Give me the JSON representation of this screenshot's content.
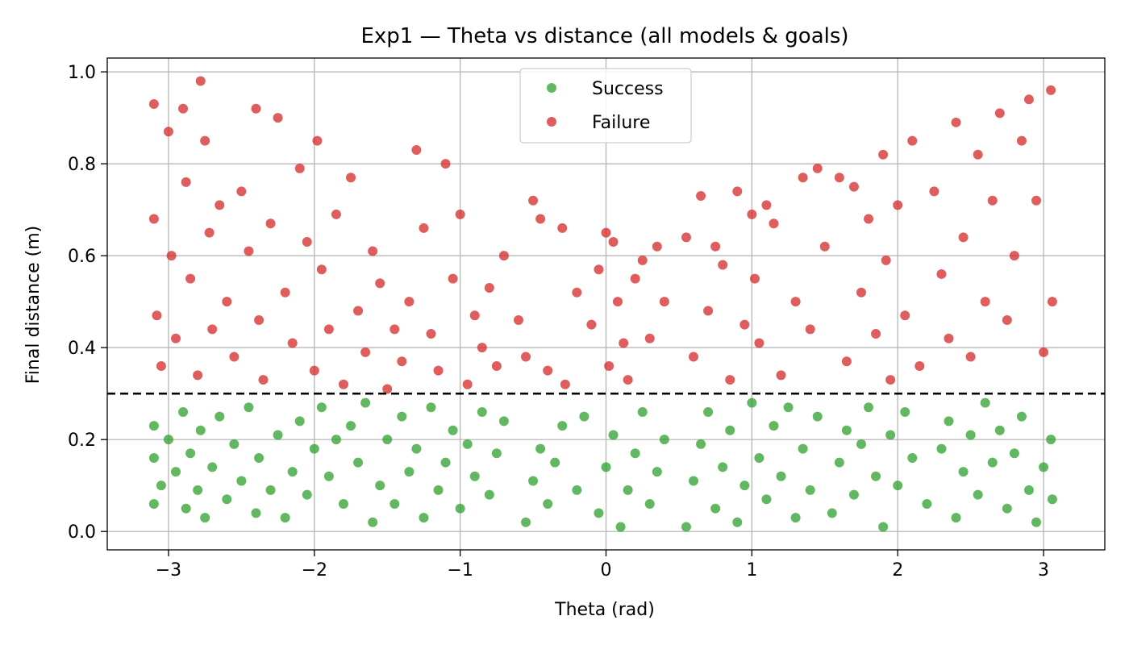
{
  "chart_data": {
    "type": "scatter",
    "title": "Exp1 — Theta vs distance (all models & goals)",
    "xlabel": "Theta (rad)",
    "ylabel": "Final distance (m)",
    "xlim": [
      -3.42,
      3.42
    ],
    "ylim": [
      -0.04,
      1.03
    ],
    "xticks": [
      -3,
      -2,
      -1,
      0,
      1,
      2,
      3
    ],
    "xtick_labels": [
      "−3",
      "−2",
      "−1",
      "0",
      "1",
      "2",
      "3"
    ],
    "yticks": [
      0.0,
      0.2,
      0.4,
      0.6,
      0.8,
      1.0
    ],
    "ytick_labels": [
      "0.0",
      "0.2",
      "0.4",
      "0.6",
      "0.8",
      "1.0"
    ],
    "grid": true,
    "legend_position": "upper-center",
    "threshold": {
      "y": 0.3,
      "style": "dashed",
      "color": "#000000"
    },
    "series": [
      {
        "name": "Success",
        "color": "#2ca02c",
        "points": [
          [
            -3.1,
            0.06
          ],
          [
            -3.1,
            0.16
          ],
          [
            -3.1,
            0.23
          ],
          [
            -3.05,
            0.1
          ],
          [
            -3.0,
            0.2
          ],
          [
            -2.95,
            0.13
          ],
          [
            -2.9,
            0.26
          ],
          [
            -2.88,
            0.05
          ],
          [
            -2.85,
            0.17
          ],
          [
            -2.8,
            0.09
          ],
          [
            -2.78,
            0.22
          ],
          [
            -2.75,
            0.03
          ],
          [
            -2.7,
            0.14
          ],
          [
            -2.65,
            0.25
          ],
          [
            -2.6,
            0.07
          ],
          [
            -2.55,
            0.19
          ],
          [
            -2.5,
            0.11
          ],
          [
            -2.45,
            0.27
          ],
          [
            -2.4,
            0.04
          ],
          [
            -2.38,
            0.16
          ],
          [
            -2.3,
            0.09
          ],
          [
            -2.25,
            0.21
          ],
          [
            -2.2,
            0.03
          ],
          [
            -2.15,
            0.13
          ],
          [
            -2.1,
            0.24
          ],
          [
            -2.05,
            0.08
          ],
          [
            -2.0,
            0.18
          ],
          [
            -1.95,
            0.27
          ],
          [
            -1.9,
            0.12
          ],
          [
            -1.85,
            0.2
          ],
          [
            -1.8,
            0.06
          ],
          [
            -1.75,
            0.23
          ],
          [
            -1.7,
            0.15
          ],
          [
            -1.65,
            0.28
          ],
          [
            -1.6,
            0.02
          ],
          [
            -1.55,
            0.1
          ],
          [
            -1.5,
            0.2
          ],
          [
            -1.45,
            0.06
          ],
          [
            -1.4,
            0.25
          ],
          [
            -1.35,
            0.13
          ],
          [
            -1.3,
            0.18
          ],
          [
            -1.25,
            0.03
          ],
          [
            -1.2,
            0.27
          ],
          [
            -1.15,
            0.09
          ],
          [
            -1.1,
            0.15
          ],
          [
            -1.05,
            0.22
          ],
          [
            -1.0,
            0.05
          ],
          [
            -0.95,
            0.19
          ],
          [
            -0.9,
            0.12
          ],
          [
            -0.85,
            0.26
          ],
          [
            -0.8,
            0.08
          ],
          [
            -0.75,
            0.17
          ],
          [
            -0.7,
            0.24
          ],
          [
            -0.55,
            0.02
          ],
          [
            -0.5,
            0.11
          ],
          [
            -0.45,
            0.18
          ],
          [
            -0.4,
            0.06
          ],
          [
            -0.35,
            0.15
          ],
          [
            -0.3,
            0.23
          ],
          [
            -0.2,
            0.09
          ],
          [
            -0.15,
            0.25
          ],
          [
            -0.05,
            0.04
          ],
          [
            0.0,
            0.14
          ],
          [
            0.05,
            0.21
          ],
          [
            0.1,
            0.01
          ],
          [
            0.15,
            0.09
          ],
          [
            0.2,
            0.17
          ],
          [
            0.25,
            0.26
          ],
          [
            0.3,
            0.06
          ],
          [
            0.35,
            0.13
          ],
          [
            0.4,
            0.2
          ],
          [
            0.55,
            0.01
          ],
          [
            0.6,
            0.11
          ],
          [
            0.65,
            0.19
          ],
          [
            0.7,
            0.26
          ],
          [
            0.75,
            0.05
          ],
          [
            0.8,
            0.14
          ],
          [
            0.85,
            0.22
          ],
          [
            0.9,
            0.02
          ],
          [
            0.95,
            0.1
          ],
          [
            1.0,
            0.28
          ],
          [
            1.05,
            0.16
          ],
          [
            1.1,
            0.07
          ],
          [
            1.15,
            0.23
          ],
          [
            1.2,
            0.12
          ],
          [
            1.25,
            0.27
          ],
          [
            1.3,
            0.03
          ],
          [
            1.35,
            0.18
          ],
          [
            1.4,
            0.09
          ],
          [
            1.45,
            0.25
          ],
          [
            1.55,
            0.04
          ],
          [
            1.6,
            0.15
          ],
          [
            1.65,
            0.22
          ],
          [
            1.7,
            0.08
          ],
          [
            1.75,
            0.19
          ],
          [
            1.8,
            0.27
          ],
          [
            1.85,
            0.12
          ],
          [
            1.9,
            0.01
          ],
          [
            1.95,
            0.21
          ],
          [
            2.0,
            0.1
          ],
          [
            2.05,
            0.26
          ],
          [
            2.1,
            0.16
          ],
          [
            2.2,
            0.06
          ],
          [
            2.3,
            0.18
          ],
          [
            2.35,
            0.24
          ],
          [
            2.4,
            0.03
          ],
          [
            2.45,
            0.13
          ],
          [
            2.5,
            0.21
          ],
          [
            2.55,
            0.08
          ],
          [
            2.6,
            0.28
          ],
          [
            2.65,
            0.15
          ],
          [
            2.7,
            0.22
          ],
          [
            2.75,
            0.05
          ],
          [
            2.8,
            0.17
          ],
          [
            2.85,
            0.25
          ],
          [
            2.9,
            0.09
          ],
          [
            2.95,
            0.02
          ],
          [
            3.0,
            0.14
          ],
          [
            3.05,
            0.2
          ],
          [
            3.06,
            0.07
          ]
        ]
      },
      {
        "name": "Failure",
        "color": "#d62728",
        "points": [
          [
            -3.1,
            0.93
          ],
          [
            -3.1,
            0.68
          ],
          [
            -3.08,
            0.47
          ],
          [
            -3.05,
            0.36
          ],
          [
            -3.0,
            0.87
          ],
          [
            -2.98,
            0.6
          ],
          [
            -2.95,
            0.42
          ],
          [
            -2.9,
            0.92
          ],
          [
            -2.88,
            0.76
          ],
          [
            -2.85,
            0.55
          ],
          [
            -2.8,
            0.34
          ],
          [
            -2.78,
            0.98
          ],
          [
            -2.75,
            0.85
          ],
          [
            -2.72,
            0.65
          ],
          [
            -2.7,
            0.44
          ],
          [
            -2.65,
            0.71
          ],
          [
            -2.6,
            0.5
          ],
          [
            -2.55,
            0.38
          ],
          [
            -2.5,
            0.74
          ],
          [
            -2.45,
            0.61
          ],
          [
            -2.4,
            0.92
          ],
          [
            -2.38,
            0.46
          ],
          [
            -2.35,
            0.33
          ],
          [
            -2.3,
            0.67
          ],
          [
            -2.25,
            0.9
          ],
          [
            -2.2,
            0.52
          ],
          [
            -2.15,
            0.41
          ],
          [
            -2.1,
            0.79
          ],
          [
            -2.05,
            0.63
          ],
          [
            -2.0,
            0.35
          ],
          [
            -1.98,
            0.85
          ],
          [
            -1.95,
            0.57
          ],
          [
            -1.9,
            0.44
          ],
          [
            -1.85,
            0.69
          ],
          [
            -1.8,
            0.32
          ],
          [
            -1.75,
            0.77
          ],
          [
            -1.7,
            0.48
          ],
          [
            -1.65,
            0.39
          ],
          [
            -1.6,
            0.61
          ],
          [
            -1.55,
            0.54
          ],
          [
            -1.5,
            0.31
          ],
          [
            -1.45,
            0.44
          ],
          [
            -1.4,
            0.37
          ],
          [
            -1.35,
            0.5
          ],
          [
            -1.3,
            0.83
          ],
          [
            -1.25,
            0.66
          ],
          [
            -1.2,
            0.43
          ],
          [
            -1.15,
            0.35
          ],
          [
            -1.1,
            0.8
          ],
          [
            -1.05,
            0.55
          ],
          [
            -1.0,
            0.69
          ],
          [
            -0.95,
            0.32
          ],
          [
            -0.9,
            0.47
          ],
          [
            -0.85,
            0.4
          ],
          [
            -0.8,
            0.53
          ],
          [
            -0.75,
            0.36
          ],
          [
            -0.7,
            0.6
          ],
          [
            -0.6,
            0.46
          ],
          [
            -0.55,
            0.38
          ],
          [
            -0.5,
            0.72
          ],
          [
            -0.45,
            0.68
          ],
          [
            -0.4,
            0.35
          ],
          [
            -0.3,
            0.66
          ],
          [
            -0.28,
            0.32
          ],
          [
            -0.2,
            0.52
          ],
          [
            -0.1,
            0.45
          ],
          [
            -0.05,
            0.57
          ],
          [
            0.0,
            0.65
          ],
          [
            0.02,
            0.36
          ],
          [
            0.05,
            0.63
          ],
          [
            0.08,
            0.5
          ],
          [
            0.12,
            0.41
          ],
          [
            0.15,
            0.33
          ],
          [
            0.2,
            0.55
          ],
          [
            0.25,
            0.59
          ],
          [
            0.3,
            0.42
          ],
          [
            0.35,
            0.62
          ],
          [
            0.4,
            0.5
          ],
          [
            0.55,
            0.64
          ],
          [
            0.6,
            0.38
          ],
          [
            0.65,
            0.73
          ],
          [
            0.7,
            0.48
          ],
          [
            0.75,
            0.62
          ],
          [
            0.8,
            0.58
          ],
          [
            0.85,
            0.33
          ],
          [
            0.9,
            0.74
          ],
          [
            0.95,
            0.45
          ],
          [
            1.0,
            0.69
          ],
          [
            1.02,
            0.55
          ],
          [
            1.05,
            0.41
          ],
          [
            1.1,
            0.71
          ],
          [
            1.15,
            0.67
          ],
          [
            1.2,
            0.34
          ],
          [
            1.3,
            0.5
          ],
          [
            1.35,
            0.77
          ],
          [
            1.4,
            0.44
          ],
          [
            1.45,
            0.79
          ],
          [
            1.5,
            0.62
          ],
          [
            1.6,
            0.77
          ],
          [
            1.65,
            0.37
          ],
          [
            1.7,
            0.75
          ],
          [
            1.75,
            0.52
          ],
          [
            1.8,
            0.68
          ],
          [
            1.85,
            0.43
          ],
          [
            1.9,
            0.82
          ],
          [
            1.92,
            0.59
          ],
          [
            1.95,
            0.33
          ],
          [
            2.0,
            0.71
          ],
          [
            2.05,
            0.47
          ],
          [
            2.1,
            0.85
          ],
          [
            2.15,
            0.36
          ],
          [
            2.25,
            0.74
          ],
          [
            2.3,
            0.56
          ],
          [
            2.35,
            0.42
          ],
          [
            2.4,
            0.89
          ],
          [
            2.45,
            0.64
          ],
          [
            2.5,
            0.38
          ],
          [
            2.55,
            0.82
          ],
          [
            2.6,
            0.5
          ],
          [
            2.65,
            0.72
          ],
          [
            2.7,
            0.91
          ],
          [
            2.75,
            0.46
          ],
          [
            2.8,
            0.6
          ],
          [
            2.85,
            0.85
          ],
          [
            2.9,
            0.94
          ],
          [
            2.95,
            0.72
          ],
          [
            3.0,
            0.39
          ],
          [
            3.05,
            0.96
          ],
          [
            3.06,
            0.5
          ]
        ]
      }
    ]
  }
}
